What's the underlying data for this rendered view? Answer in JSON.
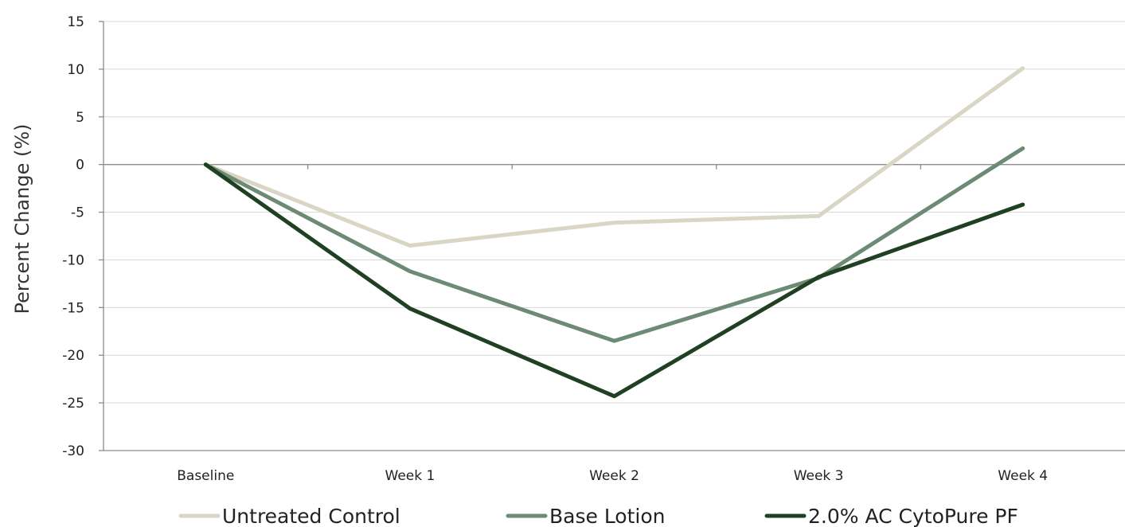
{
  "chart_data": {
    "type": "line",
    "title": "",
    "xlabel": "",
    "ylabel": "Percent Change (%)",
    "categories": [
      "Baseline",
      "Week 1",
      "Week 2",
      "Week 3",
      "Week 4"
    ],
    "ylim": [
      -30,
      15
    ],
    "yticks": [
      15,
      10,
      5,
      0,
      -5,
      -10,
      -15,
      -20,
      -25,
      -30
    ],
    "grid": true,
    "legend_position": "bottom",
    "series": [
      {
        "name": "Untreated Control",
        "color": "#d9d6c6",
        "values": [
          0,
          -8.5,
          -6.1,
          -5.4,
          10.1
        ]
      },
      {
        "name": "Base Lotion",
        "color": "#6d8a74",
        "values": [
          0,
          -11.2,
          -18.5,
          -11.9,
          1.7
        ]
      },
      {
        "name": "2.0% AC CytoPure PF",
        "color": "#1f4023",
        "values": [
          0,
          -15.1,
          -24.3,
          -11.8,
          -4.2
        ]
      }
    ]
  }
}
